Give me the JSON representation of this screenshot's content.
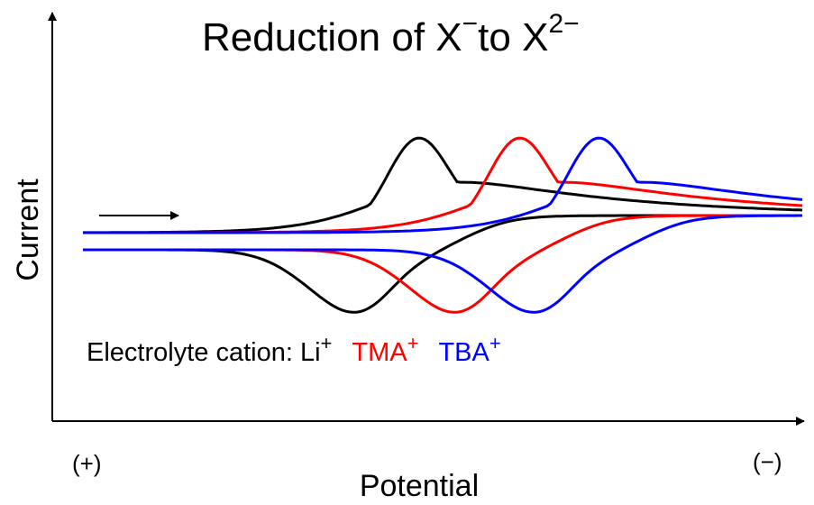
{
  "chart_data": {
    "type": "line",
    "title": {
      "prefix": "Reduction of X",
      "charge1": "−",
      "middle": "to X",
      "charge2": "2−"
    },
    "xlabel": "Potential",
    "ylabel": "Current",
    "x_edge_labels": {
      "left": "(+)",
      "right": "(−)"
    },
    "legend_prefix": "Electrolyte cation: ",
    "series": [
      {
        "name": "Li",
        "charge": "+",
        "color": "#000000",
        "peak_shift": 0.0
      },
      {
        "name": "TMA",
        "charge": "+",
        "color": "#ff0000",
        "peak_shift": 0.14
      },
      {
        "name": "TBA",
        "charge": "+",
        "color": "#0000ff",
        "peak_shift": 0.25
      }
    ],
    "scan_direction": "left-to-right",
    "grid": false,
    "legend_position": "bottom-left"
  }
}
